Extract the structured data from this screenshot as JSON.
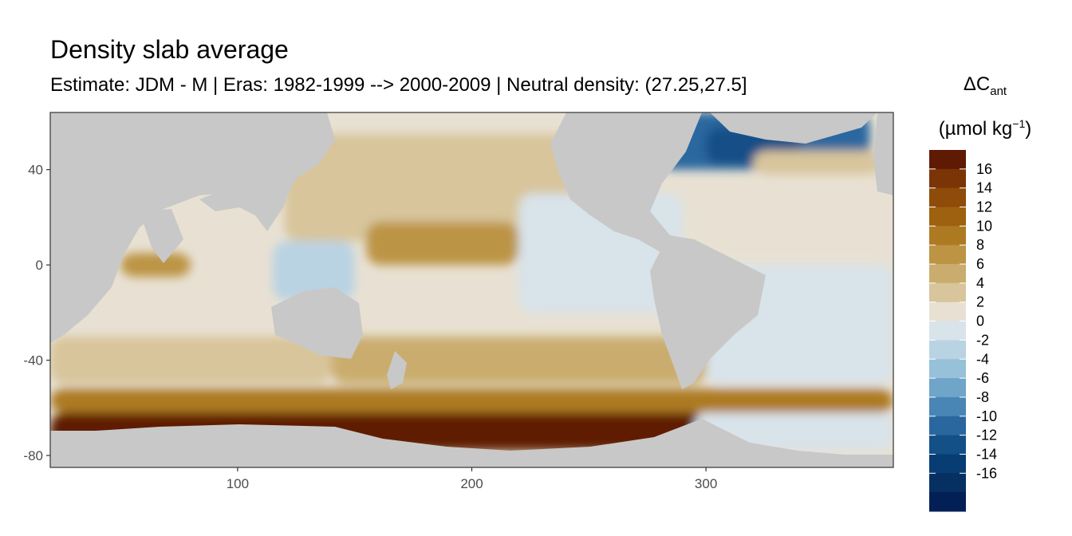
{
  "chart_data": {
    "type": "heatmap",
    "title": "Density slab average",
    "subtitle": "Estimate: JDM - M | Eras: 1982-1999 --> 2000-2009 | Neutral density: (27.25,27.5]",
    "xlim": [
      20,
      380
    ],
    "ylim": [
      -85,
      64
    ],
    "x_ticks": [
      100,
      200,
      300
    ],
    "y_ticks": [
      40,
      0,
      -40,
      -80
    ],
    "x_tick_labels": [
      "100",
      "200",
      "300"
    ],
    "y_tick_labels": [
      "40",
      "0",
      "-40",
      "-80"
    ],
    "legend": {
      "position": "right",
      "title_symbol": "ΔC",
      "title_subscript": "ant",
      "unit_base": "(µmol kg",
      "unit_sup": "−1",
      "unit_end": ")",
      "breaks": [
        16,
        14,
        12,
        10,
        8,
        6,
        4,
        2,
        0,
        -2,
        -4,
        -6,
        -8,
        -10,
        -12,
        -14,
        -16
      ],
      "break_labels": [
        "16",
        "14",
        "12",
        "10",
        "8",
        "6",
        "4",
        "2",
        "0",
        "-2",
        "-4",
        "-6",
        "-8",
        "-10",
        "-12",
        "-14",
        "-16"
      ],
      "colors_high_to_low": [
        "#5e1a03",
        "#7b3406",
        "#8f4b09",
        "#9e610f",
        "#ad7a22",
        "#bc9444",
        "#caad6e",
        "#d8c59b",
        "#e8e1d3",
        "#d8e3ea",
        "#b9d3e3",
        "#97c0d9",
        "#6ea5c9",
        "#4a86b5",
        "#2a679f",
        "#125087",
        "#083d74",
        "#063062",
        "#021f56"
      ]
    },
    "fields": [
      {
        "name": "southern-ocean-band",
        "value": 18,
        "lon": [
          20,
          300
        ],
        "lat": [
          -77,
          -62
        ]
      },
      {
        "name": "ross-sea",
        "value": 18,
        "lon": [
          160,
          290
        ],
        "lat": [
          -78,
          -66
        ]
      },
      {
        "name": "southern-transition",
        "value": 9,
        "lon": [
          20,
          380
        ],
        "lat": [
          -62,
          -52
        ]
      },
      {
        "name": "south-pacific-belt",
        "value": 5,
        "lon": [
          140,
          300
        ],
        "lat": [
          -50,
          -30
        ]
      },
      {
        "name": "indian-ocean-south",
        "value": 3,
        "lon": [
          20,
          140
        ],
        "lat": [
          -50,
          -30
        ]
      },
      {
        "name": "north-pacific-subtropical",
        "value": 3,
        "lon": [
          120,
          270
        ],
        "lat": [
          10,
          55
        ]
      },
      {
        "name": "pacific-equatorial-core",
        "value": 6,
        "lon": [
          155,
          220
        ],
        "lat": [
          0,
          18
        ]
      },
      {
        "name": "arabian-sea",
        "value": 6,
        "lon": [
          50,
          80
        ],
        "lat": [
          -5,
          5
        ]
      },
      {
        "name": "east-pacific",
        "value": -1,
        "lon": [
          220,
          290
        ],
        "lat": [
          -20,
          30
        ]
      },
      {
        "name": "south-atlantic",
        "value": -1,
        "lon": [
          300,
          380
        ],
        "lat": [
          -50,
          0
        ]
      },
      {
        "name": "north-atlantic-subpolar",
        "value": -12,
        "lon": [
          280,
          370
        ],
        "lat": [
          40,
          64
        ]
      },
      {
        "name": "labrador-sea",
        "value": -14,
        "lon": [
          300,
          340
        ],
        "lat": [
          42,
          58
        ]
      },
      {
        "name": "north-atlantic-subtropical",
        "value": 3,
        "lon": [
          320,
          375
        ],
        "lat": [
          38,
          48
        ]
      },
      {
        "name": "weddell-sea",
        "value": -1,
        "lon": [
          295,
          380
        ],
        "lat": [
          -78,
          -62
        ]
      },
      {
        "name": "indonesian-seas",
        "value": -3,
        "lon": [
          115,
          150
        ],
        "lat": [
          -15,
          10
        ]
      }
    ]
  }
}
